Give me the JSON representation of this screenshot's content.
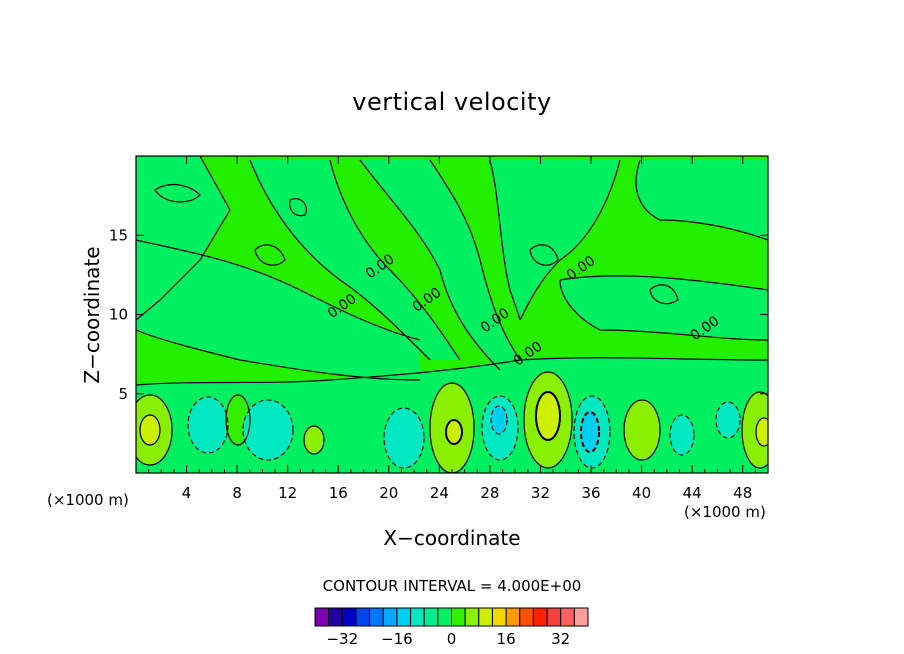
{
  "chart_data": {
    "type": "heatmap",
    "title": "vertical velocity",
    "xlabel": "X−coordinate",
    "ylabel": "Z−coordinate",
    "x_unit_left": "(×1000 m)",
    "x_unit_right": "(×1000 m)",
    "xlim": [
      0,
      50
    ],
    "ylim": [
      0,
      20
    ],
    "x_ticks": [
      4,
      8,
      12,
      16,
      20,
      24,
      28,
      32,
      36,
      40,
      44,
      48
    ],
    "y_ticks": [
      5,
      10,
      15
    ],
    "contour_interval_label": "CONTOUR INTERVAL = 4.000E+00",
    "contour_interval": 4,
    "zero_labels": [
      "0.00",
      "0.00",
      "0.00",
      "0.00",
      "0.00",
      "0.00",
      "0.00"
    ],
    "colorbar": {
      "levels": [
        -36,
        -32,
        -28,
        -24,
        -20,
        -16,
        -12,
        -8,
        -4,
        0,
        4,
        8,
        12,
        16,
        20,
        24,
        28,
        32,
        36
      ],
      "colors": [
        "#7a00b0",
        "#2200a0",
        "#0000c8",
        "#0044ee",
        "#0077ff",
        "#00a8ff",
        "#00d0f0",
        "#00e8c0",
        "#00f090",
        "#00f060",
        "#33f000",
        "#88f000",
        "#ccf000",
        "#f0d800",
        "#ff9900",
        "#ff5000",
        "#ff2000",
        "#f04040",
        "#ff6060",
        "#ff9c9c"
      ],
      "tick_labels": [
        "−32",
        "−16",
        "0",
        "16",
        "32"
      ],
      "tick_values": [
        -32,
        -16,
        0,
        16,
        32
      ]
    },
    "cells": [
      {
        "x": 2,
        "z": 17.5,
        "w": -1
      },
      {
        "x": 6,
        "z": 17.5,
        "w": 1
      },
      {
        "x": 10,
        "z": 17.5,
        "w": 2
      },
      {
        "x": 14,
        "z": 17.5,
        "w": 1
      },
      {
        "x": 18,
        "z": 17.5,
        "w": 2
      },
      {
        "x": 22,
        "z": 17.5,
        "w": 2
      },
      {
        "x": 26,
        "z": 17.5,
        "w": 1
      },
      {
        "x": 30,
        "z": 17.5,
        "w": 1
      },
      {
        "x": 34,
        "z": 17.5,
        "w": 2
      },
      {
        "x": 38,
        "z": 17.5,
        "w": 1
      },
      {
        "x": 42,
        "z": 17.5,
        "w": 2
      },
      {
        "x": 46,
        "z": 17.5,
        "w": 1
      },
      {
        "x": 50,
        "z": 17.5,
        "w": 1
      },
      {
        "x": 2,
        "z": 12.5,
        "w": 2
      },
      {
        "x": 6,
        "z": 12.5,
        "w": 1
      },
      {
        "x": 10,
        "z": 12.5,
        "w": 1
      },
      {
        "x": 14,
        "z": 12.5,
        "w": -1
      },
      {
        "x": 18,
        "z": 12.5,
        "w": 1
      },
      {
        "x": 22,
        "z": 12.5,
        "w": -1
      },
      {
        "x": 26,
        "z": 12.5,
        "w": 2
      },
      {
        "x": 30,
        "z": 12.5,
        "w": 1
      },
      {
        "x": 34,
        "z": 12.5,
        "w": -1
      },
      {
        "x": 38,
        "z": 12.5,
        "w": 1
      },
      {
        "x": 42,
        "z": 12.5,
        "w": 2
      },
      {
        "x": 46,
        "z": 12.5,
        "w": 1
      },
      {
        "x": 50,
        "z": 12.5,
        "w": 1
      },
      {
        "x": 2,
        "z": 7.5,
        "w": 1
      },
      {
        "x": 6,
        "z": 7.5,
        "w": 2
      },
      {
        "x": 10,
        "z": 7.5,
        "w": 1
      },
      {
        "x": 14,
        "z": 7.5,
        "w": 1
      },
      {
        "x": 18,
        "z": 7.5,
        "w": 2
      },
      {
        "x": 22,
        "z": 7.5,
        "w": 1
      },
      {
        "x": 26,
        "z": 7.5,
        "w": 1
      },
      {
        "x": 30,
        "z": 7.5,
        "w": 2
      },
      {
        "x": 34,
        "z": 7.5,
        "w": 1
      },
      {
        "x": 38,
        "z": 7.5,
        "w": 2
      },
      {
        "x": 42,
        "z": 7.5,
        "w": 1
      },
      {
        "x": 46,
        "z": 7.5,
        "w": 1
      },
      {
        "x": 50,
        "z": 7.5,
        "w": 2
      },
      {
        "x": 1,
        "z": 2.5,
        "w": 6
      },
      {
        "x": 5.5,
        "z": 2.5,
        "w": -4
      },
      {
        "x": 9,
        "z": 2.5,
        "w": 4
      },
      {
        "x": 11,
        "z": 2.5,
        "w": -6
      },
      {
        "x": 14.5,
        "z": 2.5,
        "w": 4
      },
      {
        "x": 17,
        "z": 2.5,
        "w": 1
      },
      {
        "x": 20.5,
        "z": 2.5,
        "w": -5
      },
      {
        "x": 25,
        "z": 2.5,
        "w": 8
      },
      {
        "x": 29,
        "z": 2.5,
        "w": -7
      },
      {
        "x": 32.5,
        "z": 2.5,
        "w": 14
      },
      {
        "x": 35.5,
        "z": 2.5,
        "w": -10
      },
      {
        "x": 39.5,
        "z": 2.5,
        "w": 8
      },
      {
        "x": 43.5,
        "z": 2.5,
        "w": -6
      },
      {
        "x": 49,
        "z": 2.5,
        "w": 8
      }
    ]
  }
}
